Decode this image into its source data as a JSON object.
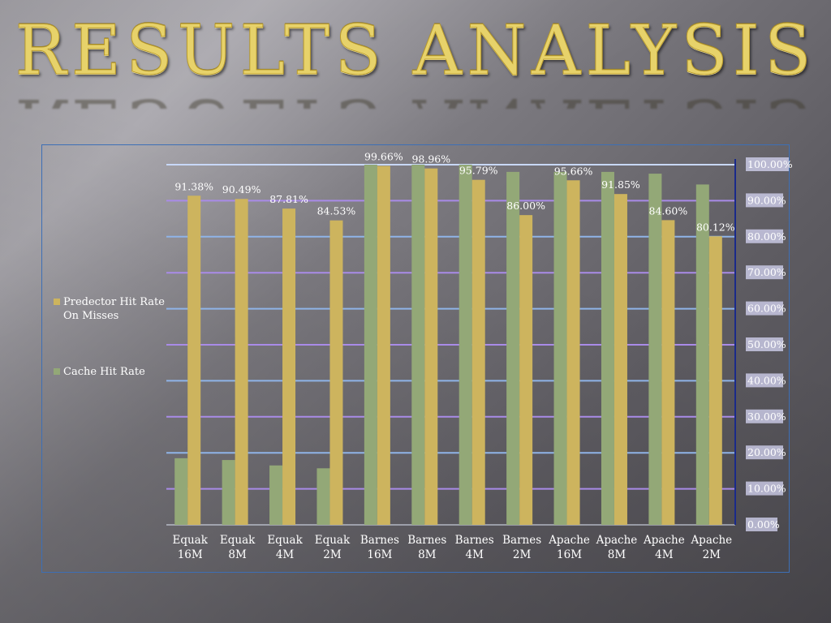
{
  "slide": {
    "title": "Results Analysis"
  },
  "legend": [
    {
      "label": "Predector Hit Rate On Misses",
      "color": "#cdb45e"
    },
    {
      "label": "Cache Hit Rate",
      "color": "#93a877"
    }
  ],
  "chart_data": {
    "type": "bar",
    "categories": [
      "Equak 16M",
      "Equak 8M",
      "Equak 4M",
      "Equak 2M",
      "Barnes 16M",
      "Barnes 8M",
      "Barnes 4M",
      "Barnes 2M",
      "Apache 16M",
      "Apache 8M",
      "Apache 4M",
      "Apache 2M"
    ],
    "series": [
      {
        "name": "Cache Hit Rate",
        "color": "#93a877",
        "values": [
          18.5,
          18.0,
          16.5,
          15.7,
          100.0,
          100.0,
          100.0,
          98.0,
          98.0,
          98.0,
          97.5,
          94.5
        ],
        "labels": []
      },
      {
        "name": "Predector Hit Rate On Misses",
        "color": "#cdb45e",
        "values": [
          91.38,
          90.49,
          87.81,
          84.53,
          99.66,
          98.96,
          95.79,
          86.0,
          95.66,
          91.85,
          84.6,
          80.12
        ],
        "labels": [
          "91.38%",
          "90.49%",
          "87.81%",
          "84.53%",
          "99.66%",
          "98.96%",
          "95.79%",
          "86.00%",
          "95.66%",
          "91.85%",
          "84.60%",
          "80.12%"
        ]
      }
    ],
    "y_ticks": [
      "0.00%",
      "10.00%",
      "20.00%",
      "30.00%",
      "40.00%",
      "50.00%",
      "60.00%",
      "70.00%",
      "80.00%",
      "90.00%",
      "100.00%"
    ],
    "ylim": [
      0,
      100
    ],
    "y_axis_side": "right",
    "grid": true,
    "legend_position": "left",
    "title": "",
    "xlabel": "",
    "ylabel": ""
  }
}
